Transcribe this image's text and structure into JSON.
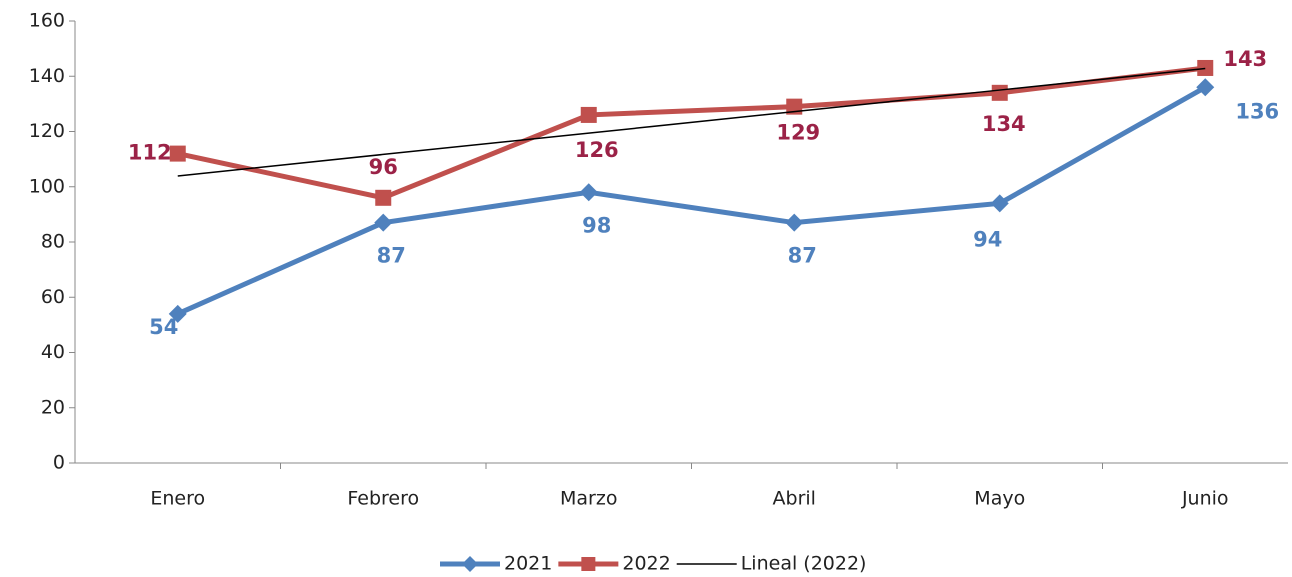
{
  "chart_data": {
    "type": "line",
    "categories": [
      "Enero",
      "Febrero",
      "Marzo",
      "Abril",
      "Mayo",
      "Junio"
    ],
    "series": [
      {
        "name": "2021",
        "color": "#4f81bd",
        "marker": "diamond",
        "values": [
          54,
          87,
          98,
          87,
          94,
          136
        ]
      },
      {
        "name": "2022",
        "color": "#c0504d",
        "label_color": "#9b2247",
        "marker": "square",
        "values": [
          112,
          96,
          126,
          129,
          134,
          143
        ]
      },
      {
        "name": "Lineal (2022)",
        "color": "#000000",
        "marker": "none",
        "values": [
          103.9,
          111.7,
          119.4,
          127.2,
          135.0,
          142.8
        ]
      }
    ],
    "ylim": [
      0,
      160
    ],
    "yticks": [
      0,
      20,
      40,
      60,
      80,
      100,
      120,
      140,
      160
    ]
  }
}
